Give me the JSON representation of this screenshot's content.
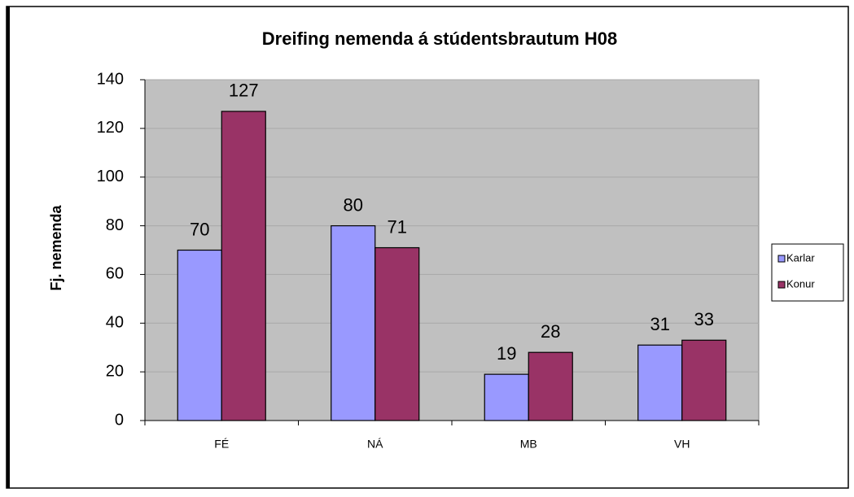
{
  "chart_data": {
    "type": "bar",
    "title": "Dreifing nemenda á stúdentsbrautum H08",
    "y_label": "Fj. nemenda",
    "categories": [
      "FÉ",
      "NÁ",
      "MB",
      "VH"
    ],
    "series": [
      {
        "name": "Karlar",
        "color": "#9999ff",
        "values": [
          70,
          80,
          19,
          31
        ]
      },
      {
        "name": "Konur",
        "color": "#993366",
        "values": [
          127,
          71,
          28,
          33
        ]
      }
    ],
    "ylim": [
      0,
      140
    ],
    "yticks": [
      0,
      20,
      40,
      60,
      80,
      100,
      120,
      140
    ],
    "grid": true,
    "legend": "right"
  }
}
